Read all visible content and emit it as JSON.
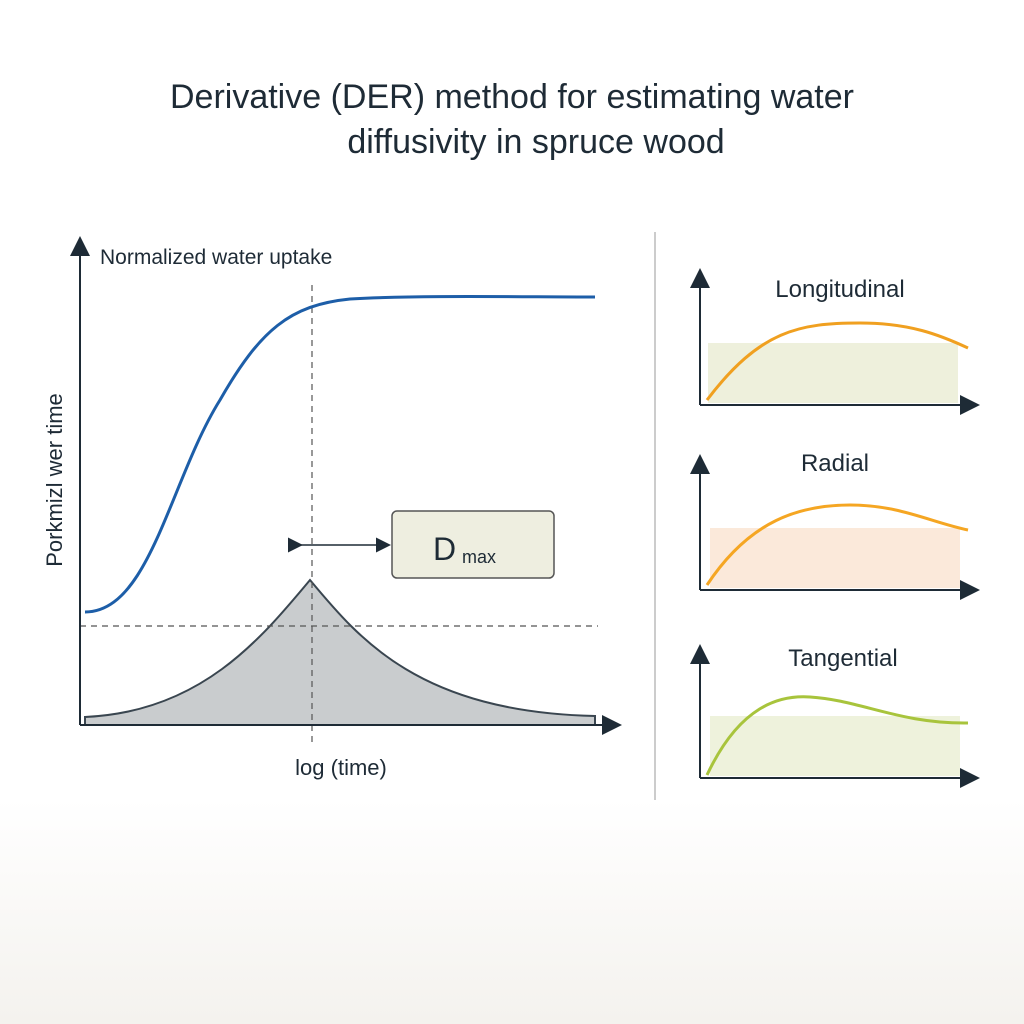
{
  "title": {
    "lines": [
      "Derivative (DER) method for estimating water",
      "diffusivity in spruce wood"
    ]
  },
  "main_panel": {
    "curve_label": "Normalized water uptake",
    "y_axis_label": "Porkmizl wer time",
    "x_axis_label": "log (time)",
    "callout": {
      "symbol": "D",
      "subscript": "max"
    }
  },
  "side_panels": [
    {
      "label": "Longitudinal"
    },
    {
      "label": "Radial"
    },
    {
      "label": "Tangential"
    }
  ]
}
